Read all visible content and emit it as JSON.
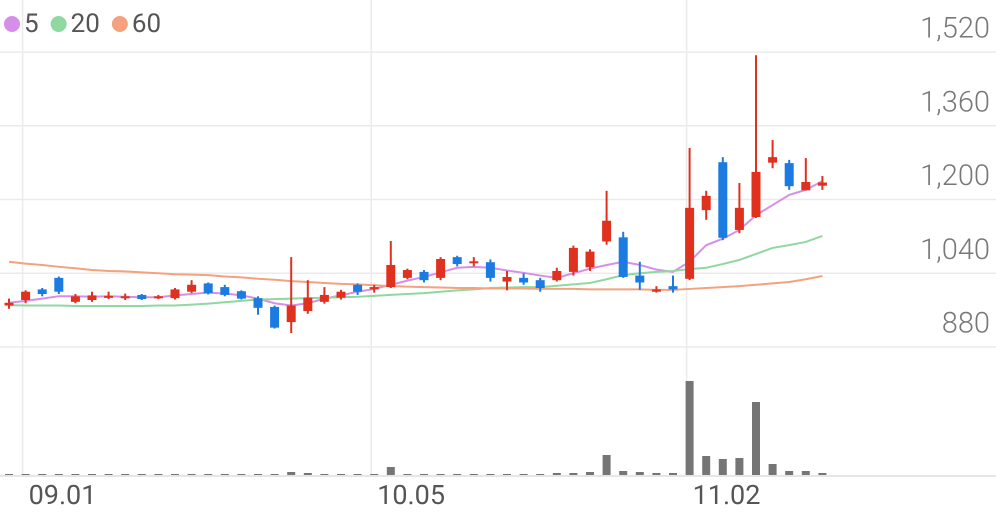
{
  "chart_data": {
    "type": "candlestick",
    "categories": [
      null,
      "09.01",
      null,
      null,
      null,
      null,
      null,
      null,
      null,
      null,
      null,
      null,
      null,
      null,
      null,
      null,
      null,
      null,
      null,
      null,
      null,
      null,
      "10.05",
      null,
      null,
      null,
      null,
      null,
      null,
      null,
      null,
      null,
      null,
      null,
      null,
      null,
      null,
      null,
      null,
      null,
      null,
      "11.02",
      null,
      null,
      null,
      null,
      null,
      null,
      null,
      null
    ],
    "candles": {
      "up_color": "#e0301e",
      "down_color": "#1b7be0",
      "open": [
        970,
        982,
        1005,
        1030,
        978,
        982,
        987,
        988,
        993,
        986,
        986,
        1000,
        1018,
        1010,
        1001,
        986,
        967,
        934,
        958,
        978,
        987,
        1015,
        1005,
        1010,
        1030,
        1043,
        1030,
        1075,
        1062,
        1064,
        1022,
        1030,
        1025,
        1025,
        1043,
        1053,
        1109,
        1118,
        1035,
        1000,
        1012,
        1028,
        1177,
        1281,
        1134,
        1162,
        1280,
        1279,
        1220,
        1230
      ],
      "high": [
        985,
        1003,
        1008,
        1033,
        995,
        1000,
        1000,
        996,
        995,
        993,
        1008,
        1025,
        1020,
        1015,
        1003,
        990,
        970,
        1075,
        1025,
        1010,
        1004,
        1018,
        1015,
        1110,
        1050,
        1047,
        1075,
        1078,
        1075,
        1070,
        1045,
        1040,
        1030,
        1052,
        1100,
        1092,
        1219,
        1130,
        1065,
        1012,
        1035,
        1312,
        1219,
        1292,
        1236,
        1513,
        1329,
        1286,
        1290,
        1251
      ],
      "low": [
        963,
        975,
        990,
        995,
        975,
        978,
        984,
        982,
        982,
        984,
        983,
        997,
        994,
        990,
        983,
        950,
        920,
        910,
        952,
        974,
        983,
        993,
        998,
        1008,
        1027,
        1020,
        1025,
        1055,
        1055,
        1022,
        1003,
        1015,
        1000,
        1022,
        1035,
        1045,
        1102,
        1030,
        1004,
        998,
        998,
        1025,
        1156,
        1112,
        1127,
        1160,
        1268,
        1221,
        1220,
        1221
      ],
      "close": [
        976,
        1000,
        995,
        1000,
        990,
        992,
        991,
        990,
        984,
        990,
        1005,
        1015,
        997,
        993,
        985,
        965,
        922,
        970,
        987,
        993,
        1000,
        1000,
        1010,
        1058,
        1047,
        1025,
        1071,
        1060,
        1066,
        1030,
        1032,
        1020,
        1008,
        1045,
        1095,
        1087,
        1154,
        1032,
        1020,
        1005,
        1005,
        1182,
        1208,
        1117,
        1182,
        1260,
        1292,
        1229,
        1238,
        1237
      ]
    },
    "series": [
      {
        "name": "5",
        "color": "#d68fe8",
        "values": [
          976,
          980,
          985,
          990,
          990,
          989,
          990,
          989,
          988,
          988,
          992,
          995,
          998,
          996,
          992,
          985,
          975,
          970,
          975,
          985,
          992,
          1000,
          1006,
          1015,
          1024,
          1032,
          1042,
          1052,
          1054,
          1052,
          1046,
          1041,
          1035,
          1030,
          1040,
          1050,
          1058,
          1065,
          1058,
          1048,
          1043,
          1065,
          1101,
          1115,
          1134,
          1166,
          1188,
          1210,
          1221,
          1240
        ]
      },
      {
        "name": "20",
        "color": "#8fd8a0",
        "values": [
          971,
          970,
          970,
          970,
          969,
          969,
          969,
          969,
          969,
          970,
          970,
          972,
          974,
          977,
          980,
          983,
          984,
          985,
          986,
          987,
          988,
          989,
          991,
          993,
          995,
          997,
          1000,
          1003,
          1005,
          1008,
          1009,
          1010,
          1010,
          1013,
          1016,
          1019,
          1027,
          1036,
          1040,
          1043,
          1045,
          1049,
          1052,
          1060,
          1069,
          1082,
          1095,
          1101,
          1108,
          1121
        ]
      },
      {
        "name": "60",
        "color": "#f4a27e",
        "values": [
          1065,
          1061,
          1058,
          1054,
          1051,
          1047,
          1045,
          1044,
          1042,
          1040,
          1038,
          1037,
          1036,
          1033,
          1031,
          1028,
          1026,
          1023,
          1021,
          1019,
          1017,
          1016,
          1014,
          1012,
          1011,
          1010,
          1009,
          1008,
          1008,
          1007,
          1007,
          1007,
          1006,
          1006,
          1006,
          1005,
          1005,
          1005,
          1005,
          1004,
          1004,
          1006,
          1008,
          1010,
          1012,
          1015,
          1018,
          1021,
          1027,
          1034
        ]
      }
    ],
    "volume": {
      "color": "#757575",
      "ylim": [
        0,
        125
      ],
      "values": [
        1,
        1,
        1,
        1,
        1,
        1,
        1,
        1,
        1,
        1,
        1,
        1,
        1,
        1,
        1,
        1,
        1,
        3,
        2,
        1,
        1,
        1,
        1,
        8,
        1,
        1,
        1,
        1,
        1,
        1,
        1,
        1,
        1,
        2,
        2,
        3,
        20,
        4,
        3,
        2,
        2,
        94,
        19,
        16,
        17,
        73,
        11,
        4,
        4,
        2
      ]
    },
    "ylim": [
      880,
      1633
    ],
    "yticks": [
      {
        "value": 1520,
        "label": "1,520"
      },
      {
        "value": 1360,
        "label": "1,360"
      },
      {
        "value": 1200,
        "label": "1,200"
      },
      {
        "value": 1040,
        "label": "1,040"
      },
      880
    ],
    "grid": true
  }
}
